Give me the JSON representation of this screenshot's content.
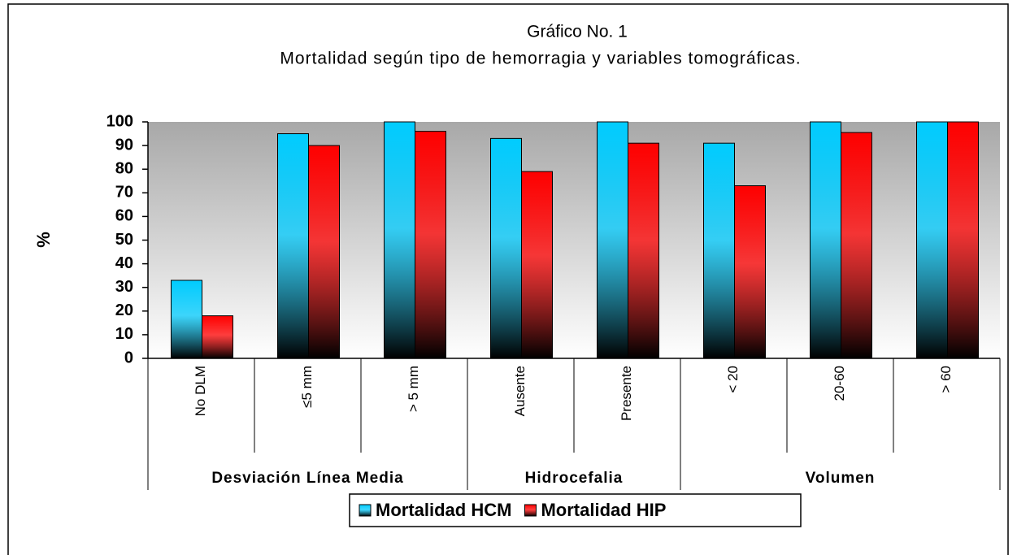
{
  "chart_data": {
    "type": "bar",
    "title": "Gráfico No. 1",
    "subtitle": "Mortalidad según tipo de hemorragia y variables tomográficas.",
    "ylabel": "%",
    "categories": [
      "No DLM",
      "≤5 mm",
      "> 5 mm",
      "Ausente",
      "Presente",
      "< 20",
      "20-60",
      "> 60"
    ],
    "groups": [
      {
        "name": "Desviación Línea Media",
        "span": 3
      },
      {
        "name": "Hidrocefalia",
        "span": 2
      },
      {
        "name": "Volumen",
        "span": 3
      }
    ],
    "series": [
      {
        "name": "Mortalidad HCM",
        "color": "#00ccff",
        "values": [
          33,
          95,
          100,
          93,
          100,
          91,
          100,
          100
        ]
      },
      {
        "name": "Mortalidad HIP",
        "color": "#ff0000",
        "values": [
          18,
          90,
          96,
          79,
          91,
          73,
          95.5,
          100
        ]
      }
    ],
    "ylim": [
      0,
      100
    ],
    "yticks": [
      0,
      10,
      20,
      30,
      40,
      50,
      60,
      70,
      80,
      90,
      100
    ],
    "legend": "bottom"
  }
}
